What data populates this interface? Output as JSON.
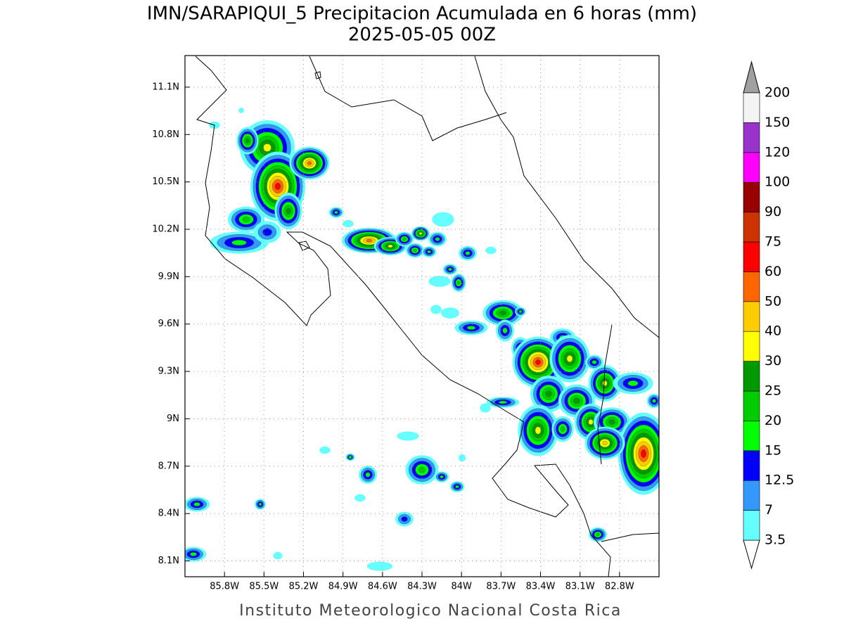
{
  "title": "IMN/SARAPIQUI_5 Precipitacion Acumulada en 6 horas (mm)",
  "subtitle": "2025-05-05 00Z",
  "footer": "Instituto Meteorologico Nacional Costa Rica",
  "map": {
    "xlim": [
      -86.1,
      -82.5
    ],
    "ylim": [
      8.0,
      11.3
    ],
    "grid": true,
    "xticks": [
      {
        "value": -85.8,
        "label": "85.8W"
      },
      {
        "value": -85.5,
        "label": "85.5W"
      },
      {
        "value": -85.2,
        "label": "85.2W"
      },
      {
        "value": -84.9,
        "label": "84.9W"
      },
      {
        "value": -84.6,
        "label": "84.6W"
      },
      {
        "value": -84.3,
        "label": "84.3W"
      },
      {
        "value": -84.0,
        "label": "84W"
      },
      {
        "value": -83.7,
        "label": "83.7W"
      },
      {
        "value": -83.4,
        "label": "83.4W"
      },
      {
        "value": -83.1,
        "label": "83.1W"
      },
      {
        "value": -82.8,
        "label": "82.8W"
      }
    ],
    "yticks": [
      {
        "value": 8.1,
        "label": "8.1N"
      },
      {
        "value": 8.4,
        "label": "8.4N"
      },
      {
        "value": 8.7,
        "label": "8.7N"
      },
      {
        "value": 9.0,
        "label": "9N"
      },
      {
        "value": 9.3,
        "label": "9.3N"
      },
      {
        "value": 9.6,
        "label": "9.6N"
      },
      {
        "value": 9.9,
        "label": "9.9N"
      },
      {
        "value": 10.2,
        "label": "10.2N"
      },
      {
        "value": 10.5,
        "label": "10.5N"
      },
      {
        "value": 10.8,
        "label": "10.8N"
      },
      {
        "value": 11.1,
        "label": "11.1N"
      }
    ]
  },
  "colorbar": {
    "levels": [
      3.5,
      7,
      12.5,
      15,
      20,
      25,
      30,
      40,
      50,
      60,
      75,
      90,
      100,
      120,
      150,
      200
    ],
    "colors": [
      "#66ffff",
      "#3399ff",
      "#0000ff",
      "#00ff00",
      "#00cc00",
      "#009900",
      "#ffff00",
      "#ffcc00",
      "#ff6600",
      "#ff0000",
      "#cc3300",
      "#990000",
      "#ff00ff",
      "#9933cc",
      "#f4f4f4"
    ],
    "under_color": "#ffffff",
    "over_color": "#a0a0a0"
  }
}
